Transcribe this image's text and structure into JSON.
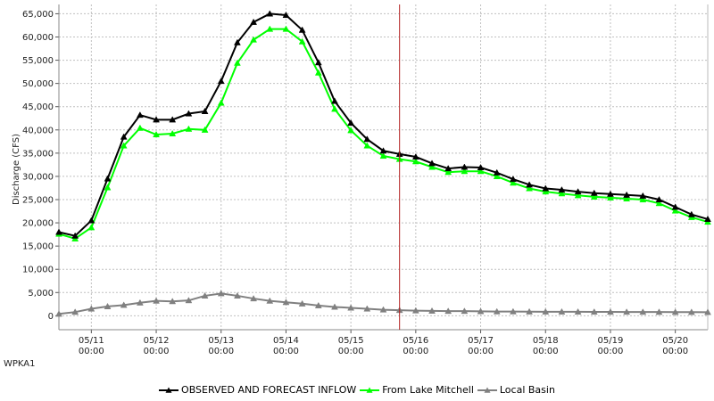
{
  "station_id": "WPKA1",
  "chart_data": {
    "type": "line",
    "title": "",
    "xlabel": "",
    "ylabel": "Discharge (CFS)",
    "ylim": [
      -3000,
      67000
    ],
    "yticks": [
      0,
      5000,
      10000,
      15000,
      20000,
      25000,
      30000,
      35000,
      40000,
      45000,
      50000,
      55000,
      60000,
      65000
    ],
    "ytick_labels": [
      "0",
      "5,000",
      "10,000",
      "15,000",
      "20,000",
      "25,000",
      "30,000",
      "35,000",
      "40,000",
      "45,000",
      "50,000",
      "55,000",
      "60,000",
      "65,000"
    ],
    "xlim": [
      "05/10 12:00",
      "05/20 12:00"
    ],
    "xticks": [
      "05/11 00:00",
      "05/12 00:00",
      "05/13 00:00",
      "05/14 00:00",
      "05/15 00:00",
      "05/16 00:00",
      "05/17 00:00",
      "05/18 00:00",
      "05/19 00:00",
      "05/20 00:00"
    ],
    "xtick_labels": [
      {
        "date": "05/11",
        "time": "00:00"
      },
      {
        "date": "05/12",
        "time": "00:00"
      },
      {
        "date": "05/13",
        "time": "00:00"
      },
      {
        "date": "05/14",
        "time": "00:00"
      },
      {
        "date": "05/15",
        "time": "00:00"
      },
      {
        "date": "05/16",
        "time": "00:00"
      },
      {
        "date": "05/17",
        "time": "00:00"
      },
      {
        "date": "05/18",
        "time": "00:00"
      },
      {
        "date": "05/19",
        "time": "00:00"
      },
      {
        "date": "05/20",
        "time": "00:00"
      }
    ],
    "current_time_marker": "05/15 18:00",
    "grid": true,
    "legend_position": "bottom",
    "x": [
      "05/10 12:00",
      "05/10 18:00",
      "05/11 00:00",
      "05/11 06:00",
      "05/11 12:00",
      "05/11 18:00",
      "05/12 00:00",
      "05/12 06:00",
      "05/12 12:00",
      "05/12 18:00",
      "05/13 00:00",
      "05/13 06:00",
      "05/13 12:00",
      "05/13 18:00",
      "05/14 00:00",
      "05/14 06:00",
      "05/14 12:00",
      "05/14 18:00",
      "05/15 00:00",
      "05/15 06:00",
      "05/15 12:00",
      "05/15 18:00",
      "05/16 00:00",
      "05/16 06:00",
      "05/16 12:00",
      "05/16 18:00",
      "05/17 00:00",
      "05/17 06:00",
      "05/17 12:00",
      "05/17 18:00",
      "05/18 00:00",
      "05/18 06:00",
      "05/18 12:00",
      "05/18 18:00",
      "05/19 00:00",
      "05/19 06:00",
      "05/19 12:00",
      "05/19 18:00",
      "05/20 00:00",
      "05/20 06:00",
      "05/20 12:00"
    ],
    "series": [
      {
        "name": "OBSERVED AND FORECAST INFLOW",
        "color": "#000000",
        "values": [
          18000,
          17200,
          20500,
          29500,
          38500,
          43200,
          42200,
          42200,
          43500,
          44000,
          50500,
          58800,
          63200,
          65000,
          64700,
          61500,
          54500,
          46200,
          41500,
          38000,
          35500,
          34800,
          34200,
          32800,
          31700,
          32000,
          31900,
          30800,
          29400,
          28200,
          27400,
          27100,
          26700,
          26400,
          26200,
          26000,
          25800,
          25000,
          23400,
          21800,
          20800
        ]
      },
      {
        "name": "From Lake Mitchell",
        "color": "#00ff00",
        "values": [
          17600,
          16600,
          19000,
          27600,
          36600,
          40400,
          39000,
          39200,
          40200,
          40000,
          45800,
          54400,
          59400,
          61700,
          61700,
          59000,
          52300,
          44500,
          39900,
          36600,
          34400,
          33700,
          33200,
          32000,
          30900,
          31100,
          31100,
          30000,
          28600,
          27400,
          26700,
          26300,
          25900,
          25600,
          25400,
          25200,
          25000,
          24200,
          22600,
          21200,
          20200
        ]
      },
      {
        "name": "Local Basin",
        "color": "#808080",
        "values": [
          400,
          800,
          1500,
          2000,
          2300,
          2800,
          3200,
          3100,
          3300,
          4300,
          4800,
          4300,
          3700,
          3200,
          2900,
          2600,
          2200,
          1900,
          1700,
          1500,
          1300,
          1200,
          1100,
          1050,
          1000,
          1000,
          950,
          900,
          900,
          880,
          870,
          860,
          850,
          840,
          830,
          820,
          810,
          800,
          790,
          780,
          770
        ]
      }
    ]
  }
}
